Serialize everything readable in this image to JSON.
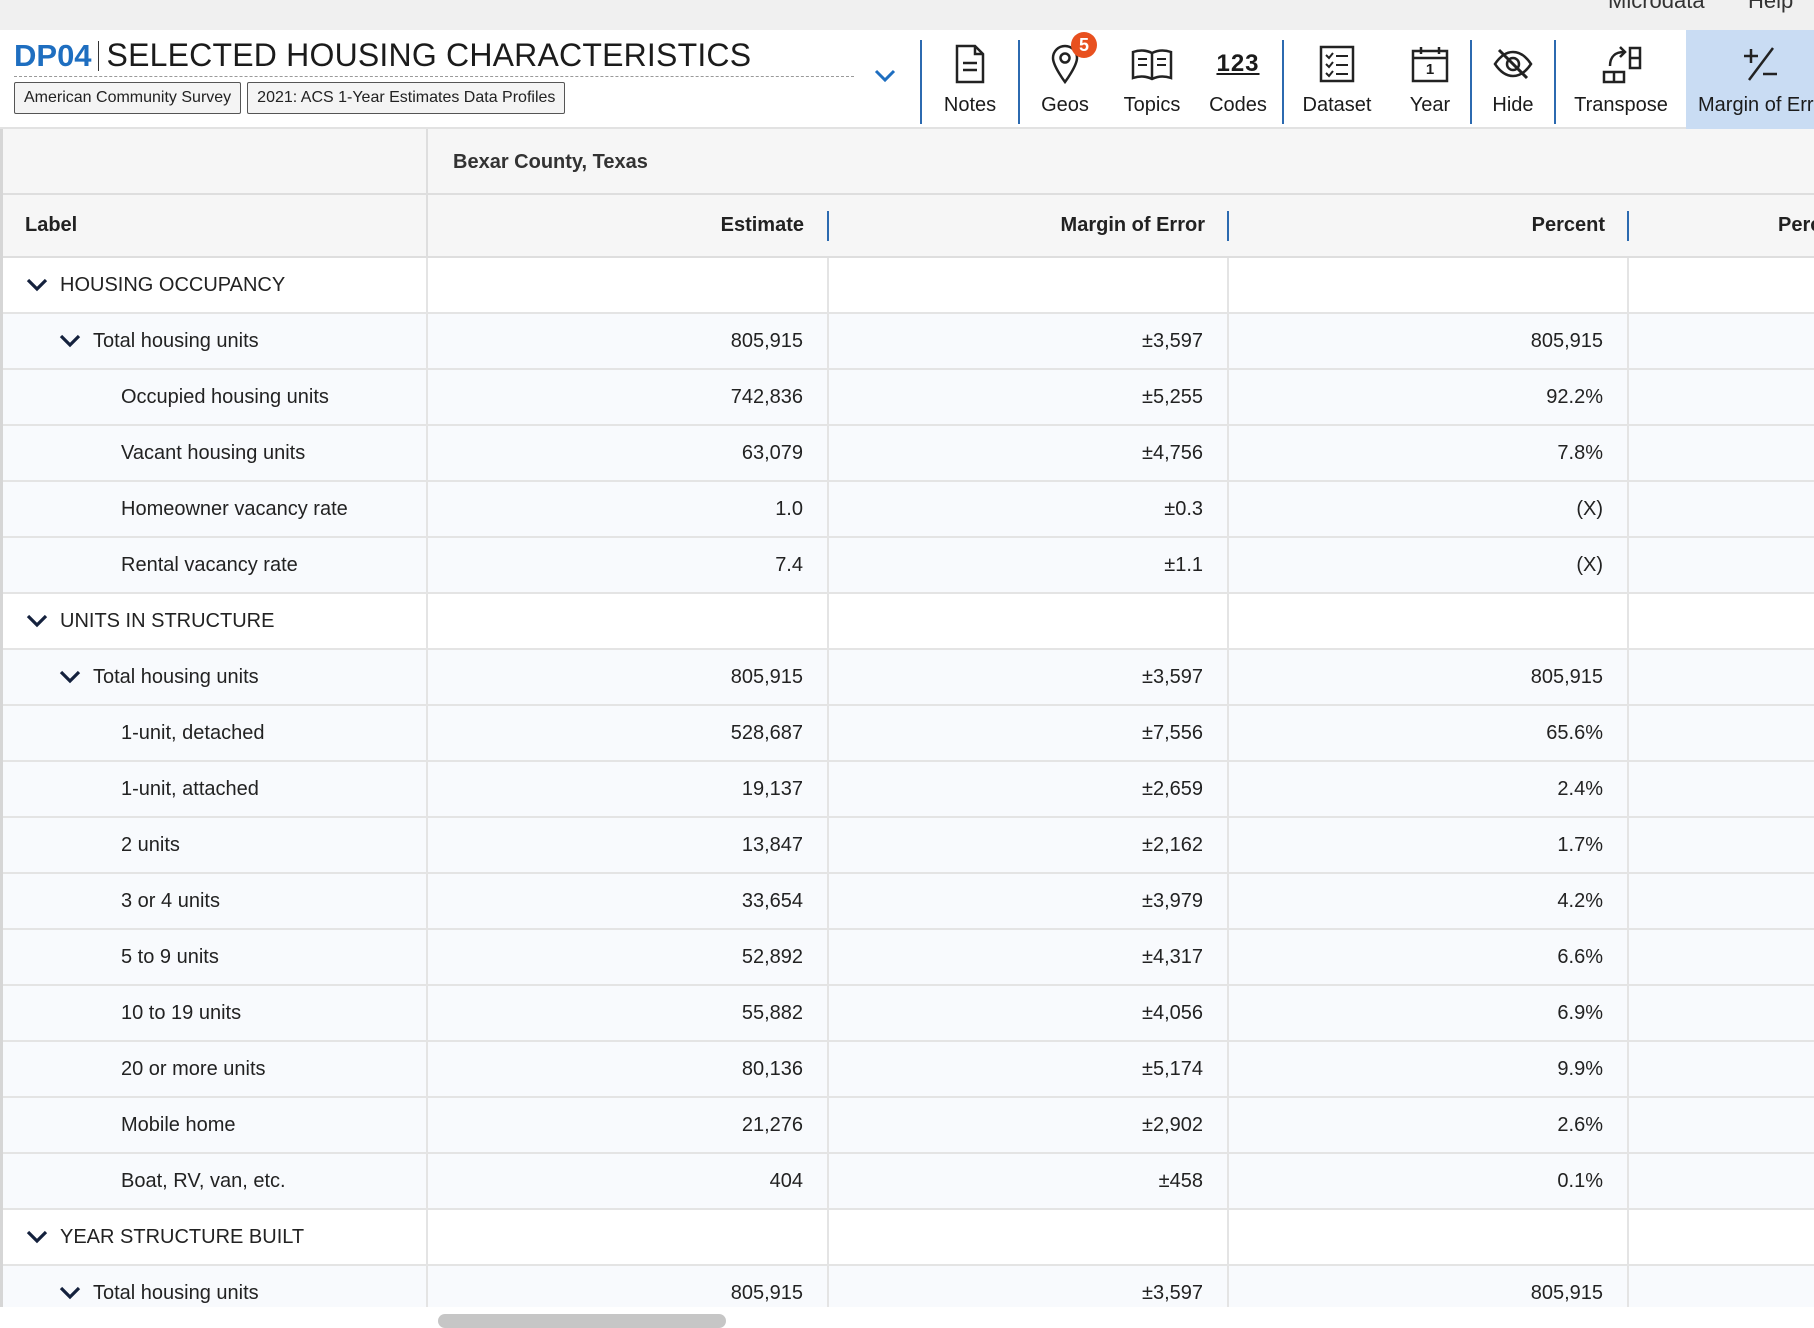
{
  "utility_nav": {
    "microdata": "Microdata",
    "help": "Help"
  },
  "header": {
    "table_id": "DP04",
    "title": "SELECTED HOUSING CHARACTERISTICS",
    "badges": [
      "American Community Survey",
      "2021: ACS 1-Year Estimates Data Profiles"
    ]
  },
  "toolbar": {
    "notes": "Notes",
    "geos": "Geos",
    "geos_count": "5",
    "topics": "Topics",
    "codes": "Codes",
    "codes_icon_text": "123",
    "dataset": "Dataset",
    "year": "Year",
    "year_icon_text": "1",
    "hide": "Hide",
    "transpose": "Transpose",
    "margin_of_error": "Margin of Err"
  },
  "table": {
    "geography": "Bexar County, Texas",
    "columns": {
      "label": "Label",
      "estimate": "Estimate",
      "moe": "Margin of Error",
      "percent": "Percent",
      "percent_moe": "Perc"
    },
    "rows": [
      {
        "label": "HOUSING OCCUPANCY",
        "level": 0,
        "section": true,
        "estimate": "",
        "moe": "",
        "percent": ""
      },
      {
        "label": "Total housing units",
        "level": 1,
        "section": true,
        "estimate": "805,915",
        "moe": "±3,597",
        "percent": "805,915"
      },
      {
        "label": "Occupied housing units",
        "level": 2,
        "estimate": "742,836",
        "moe": "±5,255",
        "percent": "92.2%"
      },
      {
        "label": "Vacant housing units",
        "level": 2,
        "estimate": "63,079",
        "moe": "±4,756",
        "percent": "7.8%"
      },
      {
        "label": "Homeowner vacancy rate",
        "level": 2,
        "estimate": "1.0",
        "moe": "±0.3",
        "percent": "(X)"
      },
      {
        "label": "Rental vacancy rate",
        "level": 2,
        "estimate": "7.4",
        "moe": "±1.1",
        "percent": "(X)"
      },
      {
        "label": "UNITS IN STRUCTURE",
        "level": 0,
        "section": true,
        "estimate": "",
        "moe": "",
        "percent": ""
      },
      {
        "label": "Total housing units",
        "level": 1,
        "section": true,
        "estimate": "805,915",
        "moe": "±3,597",
        "percent": "805,915"
      },
      {
        "label": "1-unit, detached",
        "level": 2,
        "estimate": "528,687",
        "moe": "±7,556",
        "percent": "65.6%"
      },
      {
        "label": "1-unit, attached",
        "level": 2,
        "estimate": "19,137",
        "moe": "±2,659",
        "percent": "2.4%"
      },
      {
        "label": "2 units",
        "level": 2,
        "estimate": "13,847",
        "moe": "±2,162",
        "percent": "1.7%"
      },
      {
        "label": "3 or 4 units",
        "level": 2,
        "estimate": "33,654",
        "moe": "±3,979",
        "percent": "4.2%"
      },
      {
        "label": "5 to 9 units",
        "level": 2,
        "estimate": "52,892",
        "moe": "±4,317",
        "percent": "6.6%"
      },
      {
        "label": "10 to 19 units",
        "level": 2,
        "estimate": "55,882",
        "moe": "±4,056",
        "percent": "6.9%"
      },
      {
        "label": "20 or more units",
        "level": 2,
        "estimate": "80,136",
        "moe": "±5,174",
        "percent": "9.9%"
      },
      {
        "label": "Mobile home",
        "level": 2,
        "estimate": "21,276",
        "moe": "±2,902",
        "percent": "2.6%"
      },
      {
        "label": "Boat, RV, van, etc.",
        "level": 2,
        "estimate": "404",
        "moe": "±458",
        "percent": "0.1%"
      },
      {
        "label": "YEAR STRUCTURE BUILT",
        "level": 0,
        "section": true,
        "estimate": "",
        "moe": "",
        "percent": ""
      },
      {
        "label": "Total housing units",
        "level": 1,
        "section": true,
        "estimate": "805,915",
        "moe": "±3,597",
        "percent": "805,915"
      }
    ]
  },
  "colors": {
    "accent": "#1e6ec0",
    "badge": "#e8501f",
    "active_tool": "#c9dcf3"
  }
}
